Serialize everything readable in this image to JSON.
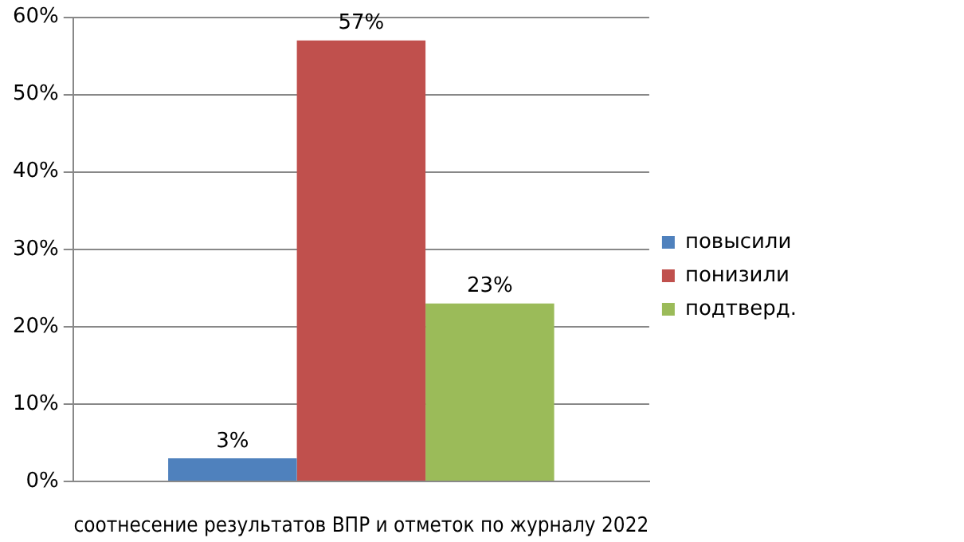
{
  "chart_data": {
    "type": "bar",
    "xlabel": "соотнесение результатов ВПР и отметок по журналу 2022",
    "categories": [
      null
    ],
    "series": [
      {
        "name": "повысили",
        "color": "#4f81bd",
        "values": [
          3
        ],
        "value_labels": [
          "3%"
        ]
      },
      {
        "name": "понизили",
        "color": "#c0504d",
        "values": [
          57
        ],
        "value_labels": [
          "57%"
        ]
      },
      {
        "name": "подтверд.",
        "color": "#9bbb59",
        "values": [
          23
        ],
        "value_labels": [
          "23%"
        ]
      }
    ],
    "ylim": [
      0,
      60
    ],
    "yticks": [
      {
        "value": 0,
        "label": "0%"
      },
      {
        "value": 10,
        "label": "10%"
      },
      {
        "value": 20,
        "label": "20%"
      },
      {
        "value": 30,
        "label": "30%"
      },
      {
        "value": 40,
        "label": "40%"
      },
      {
        "value": 50,
        "label": "50%"
      },
      {
        "value": 60,
        "label": "60%"
      }
    ],
    "grid": "y",
    "legend": "right"
  }
}
